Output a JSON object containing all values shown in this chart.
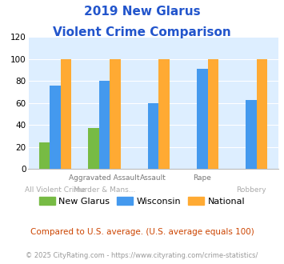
{
  "title_line1": "2019 New Glarus",
  "title_line2": "Violent Crime Comparison",
  "categories": [
    "All Violent Crime",
    "Aggravated Assault",
    "Murder & Mans...",
    "Rape",
    "Robbery"
  ],
  "new_glarus": [
    24,
    37,
    null,
    null,
    null
  ],
  "wisconsin": [
    76,
    80,
    60,
    91,
    63
  ],
  "national": [
    100,
    100,
    100,
    100,
    100
  ],
  "ylim": [
    0,
    120
  ],
  "yticks": [
    0,
    20,
    40,
    60,
    80,
    100,
    120
  ],
  "color_new_glarus": "#77bb44",
  "color_wisconsin": "#4499ee",
  "color_national": "#ffaa33",
  "plot_bg": "#ddeeff",
  "top_labels": [
    "",
    "Aggravated Assault",
    "Assault",
    "Rape",
    ""
  ],
  "bottom_labels": [
    "All Violent Crime",
    "Murder & Mans...",
    "",
    "",
    "Robbery"
  ],
  "footnote1": "Compared to U.S. average. (U.S. average equals 100)",
  "footnote2": "© 2025 CityRating.com - https://www.cityrating.com/crime-statistics/",
  "title_color": "#2255cc",
  "footnote1_color": "#cc4400",
  "footnote2_color": "#999999",
  "top_label_color": "#777777",
  "bottom_label_color": "#aaaaaa"
}
